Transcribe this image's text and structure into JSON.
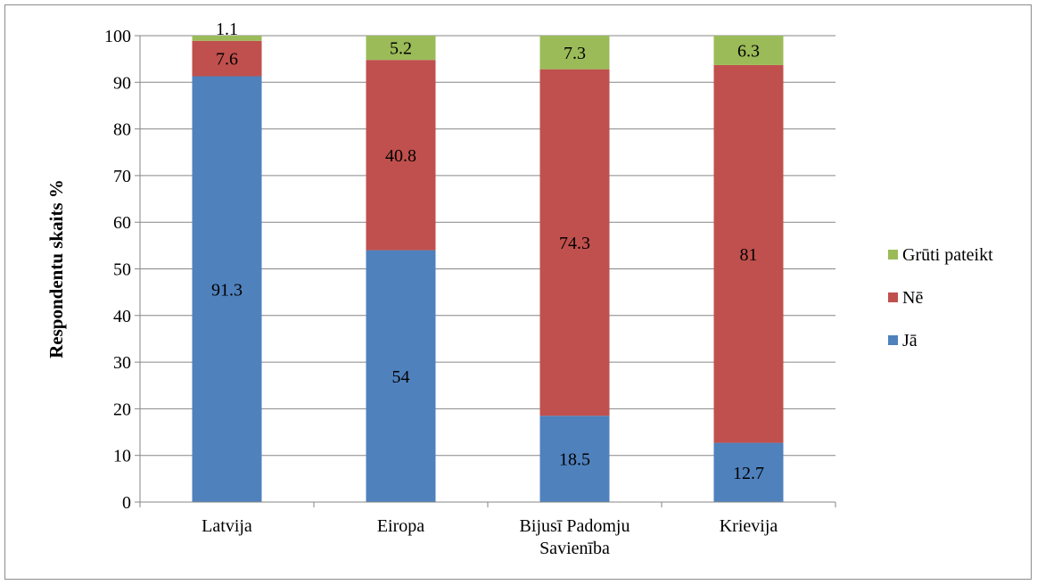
{
  "chart_data": {
    "type": "bar",
    "stacked": true,
    "categories": [
      [
        "Latvija"
      ],
      [
        "Eiropa"
      ],
      [
        "Bijusī Padomju",
        "Savienība"
      ],
      [
        "Krievija"
      ]
    ],
    "series": [
      {
        "name": "Jā",
        "color": "#4f81bd",
        "values": [
          91.3,
          54,
          18.5,
          12.7
        ],
        "labels": [
          "91.3",
          "54",
          "18.5",
          "12.7"
        ]
      },
      {
        "name": "Nē",
        "color": "#c0504d",
        "values": [
          7.6,
          40.8,
          74.3,
          81
        ],
        "labels": [
          "7.6",
          "40.8",
          "74.3",
          "81"
        ]
      },
      {
        "name": "Grūti pateikt",
        "color": "#9bbb59",
        "values": [
          1.1,
          5.2,
          7.3,
          6.3
        ],
        "labels": [
          "1.1",
          "5.2",
          "7.3",
          "6.3"
        ]
      }
    ],
    "title": "",
    "xlabel": "",
    "ylabel": "Respondentu skaits %",
    "ylim": [
      0,
      100
    ],
    "yticks": [
      0,
      10,
      20,
      30,
      40,
      50,
      60,
      70,
      80,
      90,
      100
    ],
    "grid": true,
    "legend_position": "right",
    "legend_order": [
      "Grūti pateikt",
      "Nē",
      "Jā"
    ]
  }
}
